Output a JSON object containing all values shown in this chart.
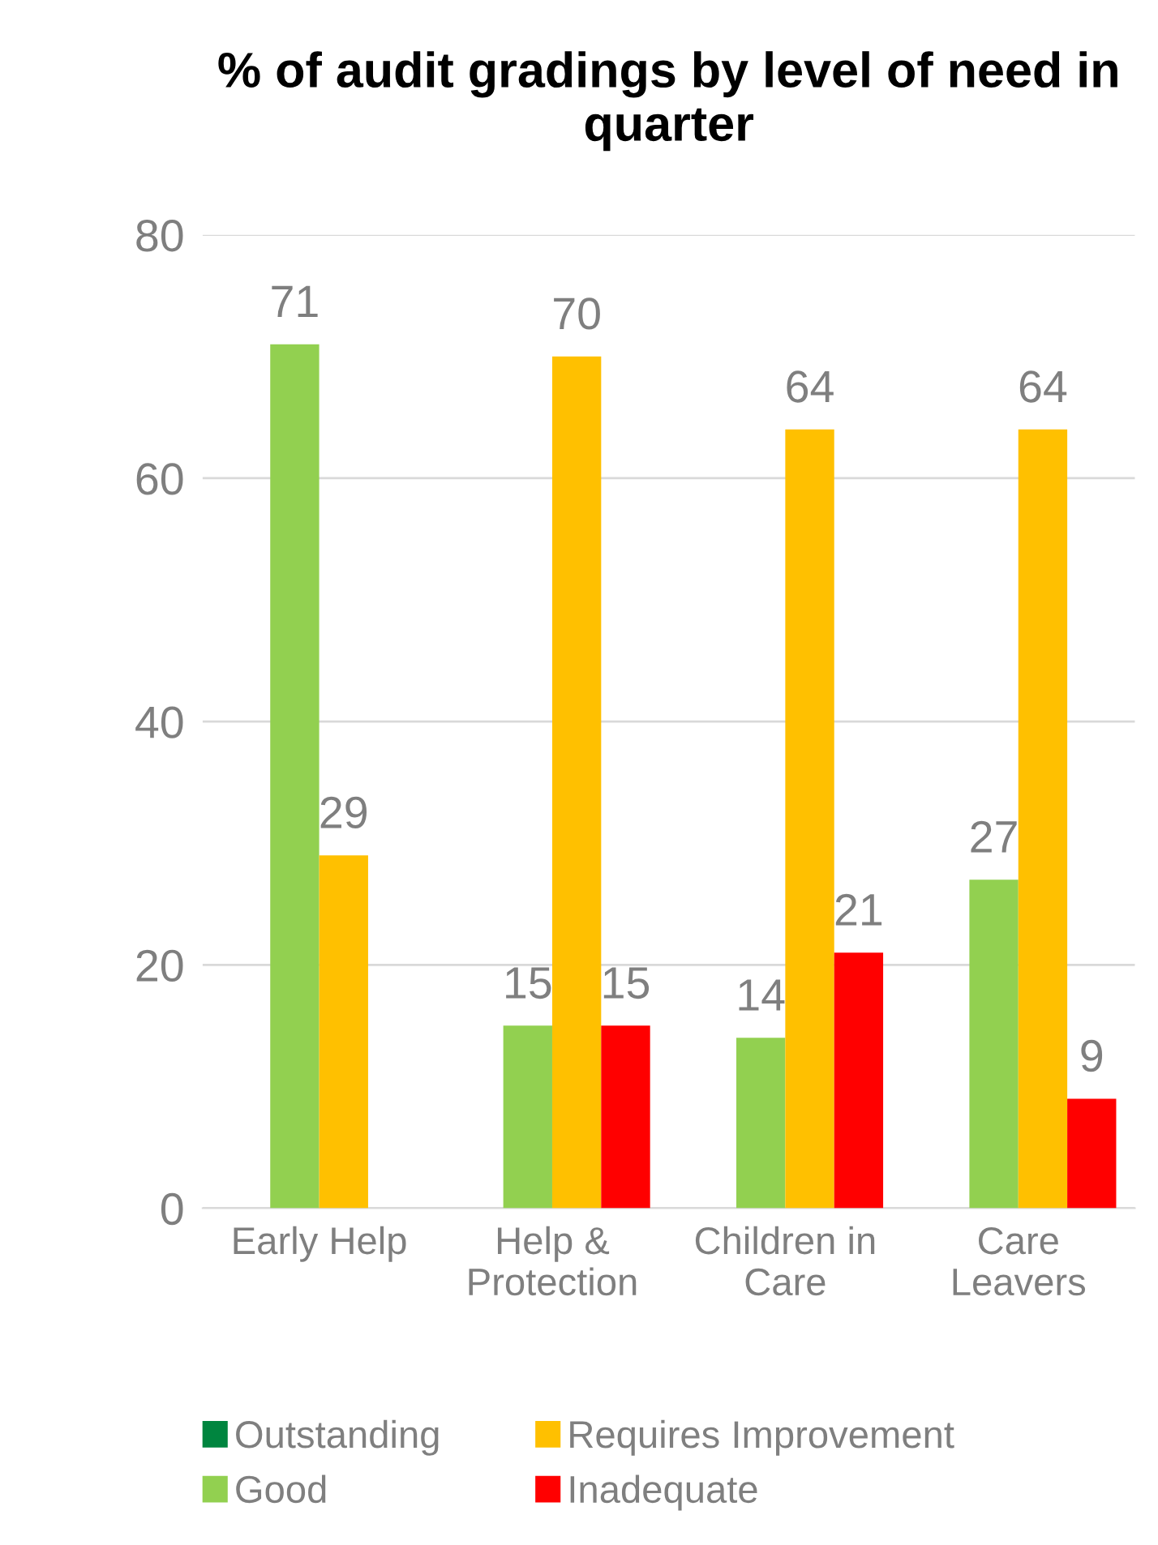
{
  "chart_data": {
    "type": "bar",
    "title": "% of audit gradings by level of need in quarter",
    "categories": [
      "Early Help",
      "Help &\nProtection",
      "Children in\nCare",
      "Care\nLeavers"
    ],
    "series": [
      {
        "name": "Outstanding",
        "color": "#00853f",
        "values": [
          null,
          null,
          null,
          null
        ]
      },
      {
        "name": "Good",
        "color": "#92d050",
        "values": [
          71,
          15,
          14,
          27
        ]
      },
      {
        "name": "Requires Improvement",
        "color": "#ffc000",
        "values": [
          29,
          70,
          64,
          64
        ]
      },
      {
        "name": "Inadequate",
        "color": "#ff0000",
        "values": [
          null,
          15,
          21,
          9
        ]
      }
    ],
    "ylim": [
      0,
      80
    ],
    "yticks": [
      0,
      20,
      40,
      60,
      80
    ],
    "grid": "y",
    "legend": "bottom",
    "data_labels": true
  }
}
